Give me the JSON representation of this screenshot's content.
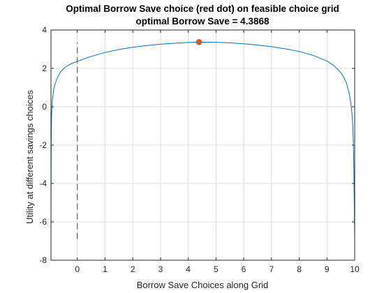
{
  "chart_data": {
    "type": "line",
    "title": "Optimal Borrow Save choice (red dot) on feasible choice grid",
    "subtitle": "optimal Borrow Save = 4.3868",
    "xlabel": "Borrow Save Choices along Grid",
    "ylabel": "Utility at different savings choices",
    "xlim": [
      -0.95,
      10
    ],
    "ylim": [
      -8,
      4
    ],
    "xticks": [
      "0",
      "1",
      "2",
      "3",
      "4",
      "5",
      "6",
      "7",
      "8",
      "9",
      "10"
    ],
    "yticks": [
      "-8",
      "-6",
      "-4",
      "-2",
      "0",
      "2",
      "4"
    ],
    "grid": true,
    "series": [
      {
        "color": "#0072BD",
        "x": [
          -0.95,
          -0.945,
          -0.94,
          -0.93,
          -0.9,
          -0.85,
          -0.8,
          -0.7,
          -0.6,
          -0.5,
          -0.4,
          -0.3,
          -0.2,
          -0.1,
          0,
          0.25,
          0.5,
          0.75,
          1,
          1.5,
          2,
          2.5,
          3,
          3.5,
          4,
          4.3868,
          5,
          5.5,
          6,
          6.5,
          7,
          7.5,
          8,
          8.5,
          9,
          9.25,
          9.5,
          9.6,
          9.7,
          9.8,
          9.85,
          9.9,
          9.93,
          9.95,
          9.97,
          9.985,
          10
        ],
        "y": [
          -6.4,
          -3.5,
          -1.9,
          -0.55,
          0.35,
          0.9,
          1.2,
          1.58,
          1.82,
          1.98,
          2.1,
          2.18,
          2.25,
          2.31,
          2.36,
          2.5,
          2.62,
          2.73,
          2.83,
          2.98,
          3.1,
          3.19,
          3.26,
          3.31,
          3.35,
          3.37,
          3.36,
          3.33,
          3.28,
          3.22,
          3.13,
          3.02,
          2.88,
          2.68,
          2.38,
          2.15,
          1.78,
          1.55,
          1.25,
          0.7,
          0.3,
          -0.3,
          -1.0,
          -1.8,
          -3.2,
          -5.0,
          -6.9
        ]
      },
      {
        "color": "#555555",
        "dashed": true,
        "x": [
          0,
          0
        ],
        "y": [
          -6.9,
          3.35
        ]
      }
    ],
    "marker": {
      "x": 4.3868,
      "y": 3.37,
      "color": "#D95319"
    }
  }
}
